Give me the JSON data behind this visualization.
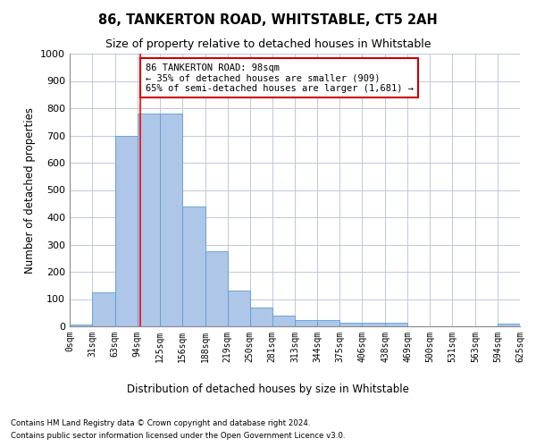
{
  "title": "86, TANKERTON ROAD, WHITSTABLE, CT5 2AH",
  "subtitle": "Size of property relative to detached houses in Whitstable",
  "xlabel": "Distribution of detached houses by size in Whitstable",
  "ylabel": "Number of detached properties",
  "bar_color": "#aec6e8",
  "bar_edge_color": "#5a9fd4",
  "background_color": "#ffffff",
  "grid_color": "#c0c8d8",
  "bin_labels": [
    "0sqm",
    "31sqm",
    "63sqm",
    "94sqm",
    "125sqm",
    "156sqm",
    "188sqm",
    "219sqm",
    "250sqm",
    "281sqm",
    "313sqm",
    "344sqm",
    "375sqm",
    "406sqm",
    "438sqm",
    "469sqm",
    "500sqm",
    "531sqm",
    "563sqm",
    "594sqm",
    "625sqm"
  ],
  "bar_values": [
    8,
    125,
    700,
    780,
    780,
    440,
    275,
    130,
    70,
    40,
    23,
    23,
    12,
    12,
    12,
    0,
    0,
    0,
    0,
    10,
    0
  ],
  "bin_edges": [
    0,
    31,
    63,
    94,
    125,
    156,
    188,
    219,
    250,
    281,
    313,
    344,
    375,
    406,
    438,
    469,
    500,
    531,
    563,
    594,
    625
  ],
  "ylim": [
    0,
    1000
  ],
  "yticks": [
    0,
    100,
    200,
    300,
    400,
    500,
    600,
    700,
    800,
    900,
    1000
  ],
  "xlim": [
    0,
    625
  ],
  "property_size": 98,
  "red_line_x": 98,
  "annotation_text": "86 TANKERTON ROAD: 98sqm\n← 35% of detached houses are smaller (909)\n65% of semi-detached houses are larger (1,681) →",
  "annotation_box_color": "#ffffff",
  "annotation_box_edge_color": "#cc0000",
  "footer_line1": "Contains HM Land Registry data © Crown copyright and database right 2024.",
  "footer_line2": "Contains public sector information licensed under the Open Government Licence v3.0."
}
